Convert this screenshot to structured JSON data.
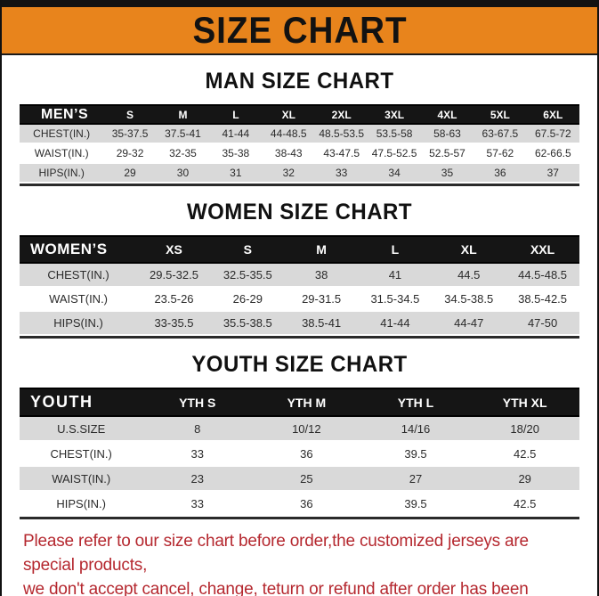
{
  "title": "SIZE CHART",
  "theme": {
    "banner_bg": "#E8841C",
    "header_row_bg": "#151515",
    "row_alt_bg": "#D9D9D9",
    "note_color": "#B5282F"
  },
  "sections": [
    {
      "id": "men",
      "heading": "MAN SIZE CHART",
      "table": {
        "label": "MEN’S",
        "columns": [
          "S",
          "M",
          "L",
          "XL",
          "2XL",
          "3XL",
          "4XL",
          "5XL",
          "6XL"
        ],
        "rows": [
          {
            "label": "CHEST(IN.)",
            "values": [
              "35-37.5",
              "37.5-41",
              "41-44",
              "44-48.5",
              "48.5-53.5",
              "53.5-58",
              "58-63",
              "63-67.5",
              "67.5-72"
            ]
          },
          {
            "label": "WAIST(IN.)",
            "values": [
              "29-32",
              "32-35",
              "35-38",
              "38-43",
              "43-47.5",
              "47.5-52.5",
              "52.5-57",
              "57-62",
              "62-66.5"
            ]
          },
          {
            "label": "HIPS(IN.)",
            "values": [
              "29",
              "30",
              "31",
              "32",
              "33",
              "34",
              "35",
              "36",
              "37"
            ]
          }
        ]
      }
    },
    {
      "id": "women",
      "heading": "WOMEN SIZE CHART",
      "table": {
        "label": "WOMEN’S",
        "columns": [
          "XS",
          "S",
          "M",
          "L",
          "XL",
          "XXL"
        ],
        "rows": [
          {
            "label": "CHEST(IN.)",
            "values": [
              "29.5-32.5",
              "32.5-35.5",
              "38",
              "41",
              "44.5",
              "44.5-48.5"
            ]
          },
          {
            "label": "WAIST(IN.)",
            "values": [
              "23.5-26",
              "26-29",
              "29-31.5",
              "31.5-34.5",
              "34.5-38.5",
              "38.5-42.5"
            ]
          },
          {
            "label": "HIPS(IN.)",
            "values": [
              "33-35.5",
              "35.5-38.5",
              "38.5-41",
              "41-44",
              "44-47",
              "47-50"
            ]
          }
        ]
      }
    },
    {
      "id": "youth",
      "heading": "YOUTH SIZE CHART",
      "table": {
        "label": "YOUTH",
        "columns": [
          "YTH S",
          "YTH M",
          "YTH L",
          "YTH XL"
        ],
        "rows": [
          {
            "label": "U.S.SIZE",
            "values": [
              "8",
              "10/12",
              "14/16",
              "18/20"
            ]
          },
          {
            "label": "CHEST(IN.)",
            "values": [
              "33",
              "36",
              "39.5",
              "42.5"
            ]
          },
          {
            "label": "WAIST(IN.)",
            "values": [
              "23",
              "25",
              "27",
              "29"
            ]
          },
          {
            "label": "HIPS(IN.)",
            "values": [
              "33",
              "36",
              "39.5",
              "42.5"
            ]
          }
        ]
      }
    }
  ],
  "note": {
    "line1": "Please refer to our size chart before order,the customized jerseys are special products,",
    "line2": "we don't accept cancel, change, teturn or refund after order has been placed!"
  }
}
